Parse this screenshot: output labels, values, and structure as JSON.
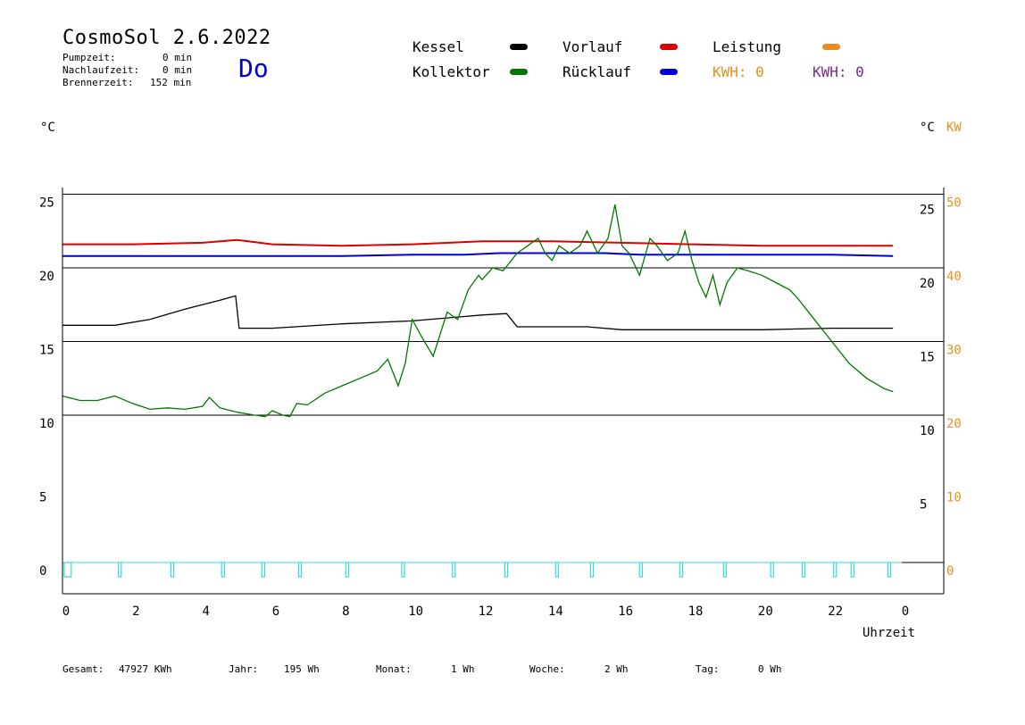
{
  "header": {
    "title": "CosmoSol 2.6.2022",
    "day": "Do",
    "pumpzeit_label": "Pumpzeit:",
    "pumpzeit_value": "0 min",
    "nachlauf_label": "Nachlaufzeit:",
    "nachlauf_value": "0 min",
    "brenner_label": "Brennerzeit:",
    "brenner_value": "152 min"
  },
  "legend": {
    "kessel": "Kessel",
    "kollektor": "Kollektor",
    "vorlauf": "Vorlauf",
    "ruecklauf": "Rücklauf",
    "leistung": "Leistung",
    "kwh1": "KWH: 0",
    "kwh2": "KWH: 0",
    "colors": {
      "kessel": "#000000",
      "kollektor": "#007700",
      "vorlauf": "#dd0000",
      "ruecklauf": "#0000dd",
      "leistung": "#ee8822",
      "pump": "#33dddd"
    }
  },
  "axes": {
    "left_unit": "°C",
    "right_unit": "°C",
    "right_unit2": "KW",
    "xlabel": "Uhrzeit"
  },
  "footer": {
    "gesamt_label": "Gesamt:",
    "gesamt_value": "47927 KWh",
    "jahr_label": "Jahr:",
    "jahr_value": "195 Wh",
    "monat_label": "Monat:",
    "monat_value": "1 Wh",
    "woche_label": "Woche:",
    "woche_value": "2 Wh",
    "tag_label": "Tag:",
    "tag_value": "0 Wh"
  },
  "chart_data": {
    "type": "line",
    "x_range": [
      0,
      24
    ],
    "x_ticks": [
      "0",
      "2",
      "4",
      "6",
      "8",
      "10",
      "12",
      "14",
      "16",
      "18",
      "20",
      "22",
      "0"
    ],
    "y_range": [
      -2,
      26
    ],
    "y_left_ticks": [
      "0",
      "5",
      "10",
      "15",
      "20",
      "25"
    ],
    "y_right_ticks": [
      "5",
      "10",
      "15",
      "20",
      "25"
    ],
    "y2_ticks": [
      "0",
      "10",
      "20",
      "30",
      "40",
      "50"
    ],
    "gridlines": [
      0,
      10,
      15,
      20,
      25
    ],
    "series": [
      {
        "name": "Vorlauf",
        "color": "#dd0000",
        "x": [
          0,
          2,
          4,
          5,
          6,
          8,
          10,
          12,
          14,
          16,
          18,
          20,
          22,
          23.75
        ],
        "y": [
          21.6,
          21.6,
          21.7,
          21.9,
          21.6,
          21.5,
          21.6,
          21.8,
          21.8,
          21.7,
          21.6,
          21.5,
          21.5,
          21.5
        ]
      },
      {
        "name": "Rücklauf",
        "color": "#0000dd",
        "x": [
          0,
          4,
          6,
          8,
          10,
          11.5,
          12.5,
          14,
          15.5,
          16.5,
          18,
          20,
          22,
          23.75
        ],
        "y": [
          20.8,
          20.8,
          20.8,
          20.8,
          20.9,
          20.9,
          21.0,
          21.0,
          21.0,
          20.9,
          20.9,
          20.9,
          20.9,
          20.8
        ]
      },
      {
        "name": "Kessel",
        "color": "#000000",
        "x": [
          0,
          1.5,
          2.5,
          3.5,
          4.5,
          4.95,
          5.05,
          6,
          8,
          10,
          11,
          12,
          12.7,
          13,
          15,
          16,
          18,
          20,
          22,
          23.75
        ],
        "y": [
          16.1,
          16.1,
          16.5,
          17.2,
          17.8,
          18.1,
          15.9,
          15.9,
          16.2,
          16.4,
          16.6,
          16.8,
          16.9,
          16.0,
          16.0,
          15.8,
          15.8,
          15.8,
          15.9,
          15.9
        ]
      },
      {
        "name": "Kollektor",
        "color": "#007700",
        "x": [
          0,
          0.5,
          1,
          1.5,
          2,
          2.5,
          3,
          3.5,
          4,
          4.2,
          4.5,
          5,
          5.5,
          5.8,
          6,
          6.3,
          6.5,
          6.7,
          7,
          7.5,
          8,
          8.5,
          9,
          9.3,
          9.6,
          9.8,
          10,
          10.3,
          10.6,
          10.8,
          11,
          11.3,
          11.6,
          11.9,
          12,
          12.3,
          12.6,
          13,
          13.3,
          13.6,
          13.8,
          14,
          14.2,
          14.5,
          14.8,
          15,
          15.3,
          15.6,
          15.8,
          16,
          16.2,
          16.5,
          16.8,
          17,
          17.3,
          17.6,
          17.8,
          18,
          18.2,
          18.4,
          18.6,
          18.8,
          19,
          19.3,
          19.6,
          20,
          20.4,
          20.8,
          21,
          21.5,
          22,
          22.5,
          23,
          23.5,
          23.75
        ],
        "y": [
          11.3,
          11.0,
          11.0,
          11.3,
          10.8,
          10.4,
          10.5,
          10.4,
          10.6,
          11.2,
          10.5,
          10.2,
          10.0,
          9.9,
          10.3,
          10.0,
          9.9,
          10.8,
          10.7,
          11.5,
          12.0,
          12.5,
          13.0,
          13.8,
          12.0,
          13.5,
          16.5,
          15.2,
          14.0,
          15.5,
          17.0,
          16.5,
          18.5,
          19.5,
          19.2,
          20.0,
          19.8,
          21.0,
          21.5,
          22.0,
          21.0,
          20.5,
          21.5,
          21.0,
          21.5,
          22.5,
          21.0,
          22.0,
          24.3,
          21.5,
          21.0,
          19.5,
          22.0,
          21.5,
          20.5,
          21.0,
          22.5,
          20.5,
          19.0,
          18.0,
          19.5,
          17.5,
          19.0,
          20.0,
          19.8,
          19.5,
          19.0,
          18.5,
          18.0,
          16.5,
          15.0,
          13.5,
          12.5,
          11.8,
          11.6
        ]
      }
    ],
    "pump_on_intervals": [
      [
        0.05,
        0.25
      ],
      [
        1.6,
        1.68
      ],
      [
        3.1,
        3.18
      ],
      [
        4.55,
        4.63
      ],
      [
        5.7,
        5.78
      ],
      [
        6.75,
        6.83
      ],
      [
        8.1,
        8.18
      ],
      [
        9.7,
        9.78
      ],
      [
        11.15,
        11.23
      ],
      [
        12.65,
        12.73
      ],
      [
        14.1,
        14.18
      ],
      [
        15.1,
        15.18
      ],
      [
        16.5,
        16.58
      ],
      [
        17.65,
        17.73
      ],
      [
        18.9,
        18.98
      ],
      [
        20.25,
        20.33
      ],
      [
        21.15,
        21.23
      ],
      [
        22.05,
        22.13
      ],
      [
        22.55,
        22.63
      ],
      [
        23.6,
        23.68
      ]
    ]
  }
}
